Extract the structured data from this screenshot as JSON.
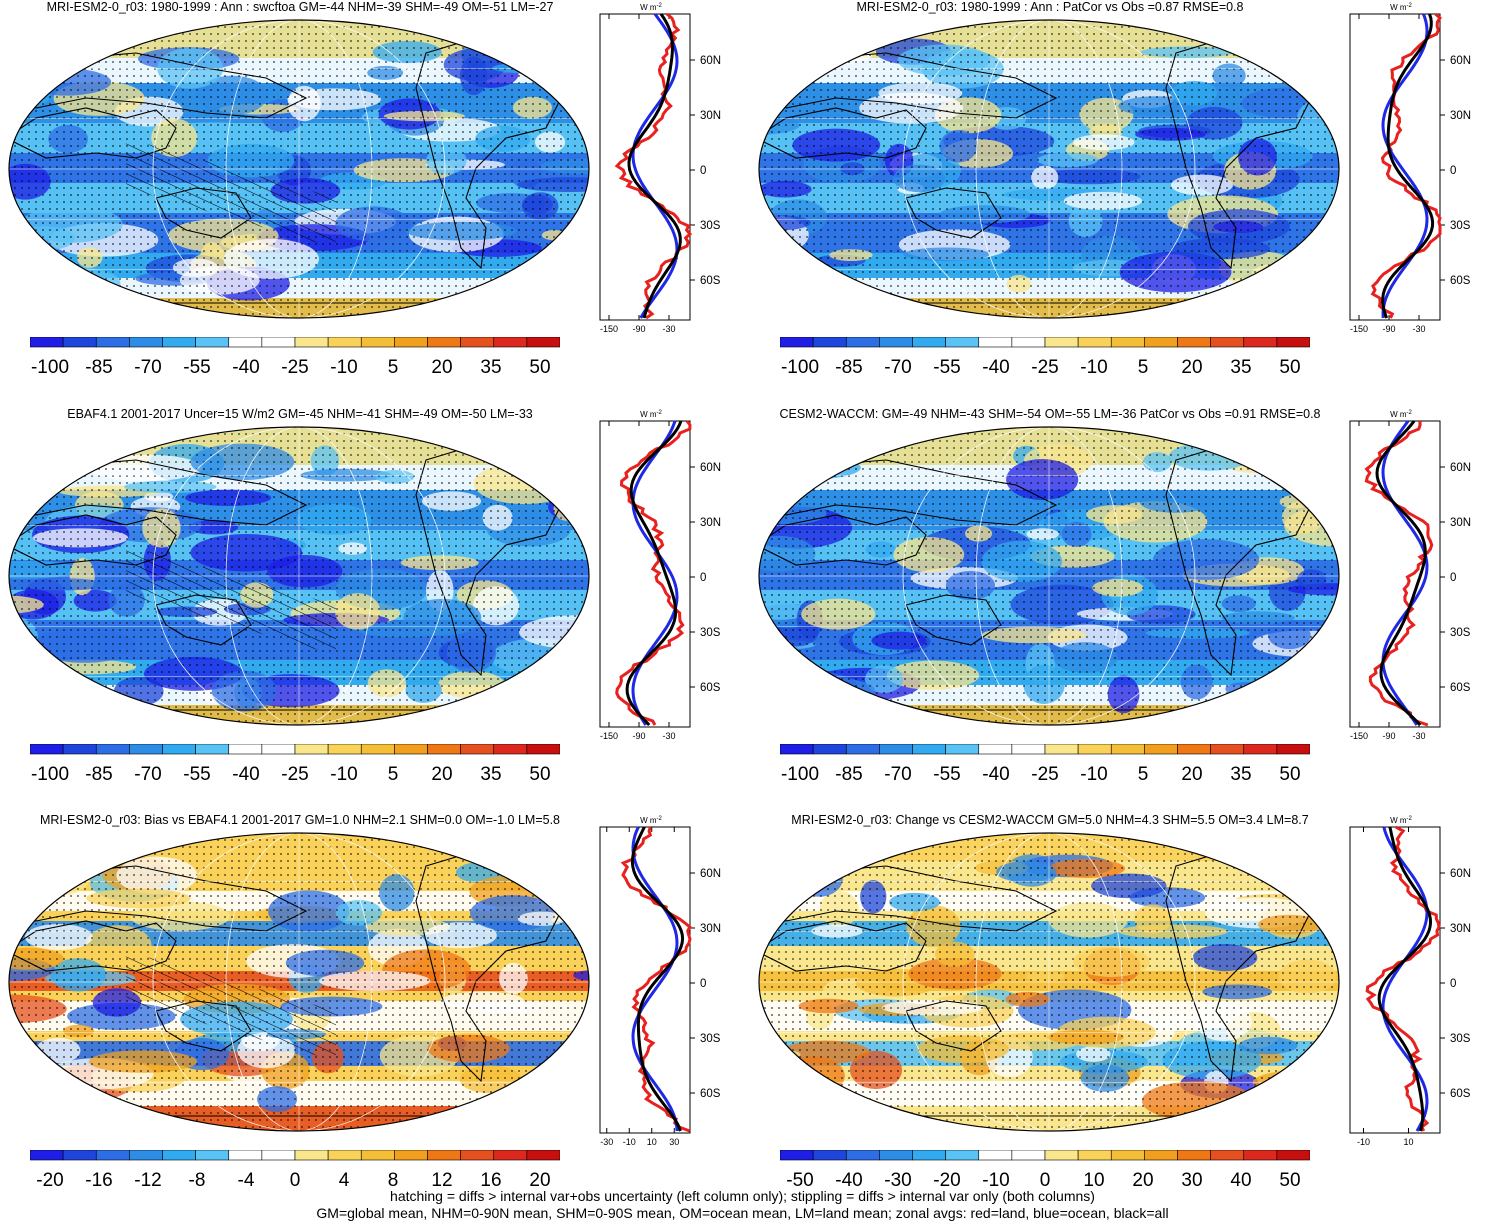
{
  "panels": [
    {
      "title": "MRI-ESM2-0_r03: 1980-1999 : Ann : swcftoa GM=-44 NHM=-39 SHM=-49 OM=-51 LM=-27",
      "colorbar": {
        "labels": [
          "-100",
          "-85",
          "-70",
          "-55",
          "-40",
          "-25",
          "-10",
          "5",
          "20",
          "35",
          "50"
        ],
        "palette": "full"
      },
      "zonal": {
        "xticks": [
          "-150",
          "-90",
          "-30"
        ],
        "units": "W m-2",
        "hatching": true
      }
    },
    {
      "title": "MRI-ESM2-0_r03: 1980-1999 : Ann : PatCor vs Obs =0.87 RMSE=0.8",
      "colorbar": {
        "labels": [
          "-100",
          "-85",
          "-70",
          "-55",
          "-40",
          "-25",
          "-10",
          "5",
          "20",
          "35",
          "50"
        ],
        "palette": "full"
      },
      "zonal": {
        "xticks": [
          "-150",
          "-90",
          "-30"
        ],
        "units": "W m-2",
        "hatching": false
      }
    },
    {
      "title": "EBAF4.1 2001-2017 Uncer=15 W/m2 GM=-45 NHM=-41 SHM=-49 OM=-50 LM=-33",
      "colorbar": {
        "labels": [
          "-100",
          "-85",
          "-70",
          "-55",
          "-40",
          "-25",
          "-10",
          "5",
          "20",
          "35",
          "50"
        ],
        "palette": "full"
      },
      "zonal": {
        "xticks": [
          "-150",
          "-90",
          "-30"
        ],
        "units": "W m-2",
        "hatching": true
      }
    },
    {
      "title": "CESM2-WACCM: GM=-49 NHM=-43 SHM=-54 OM=-55 LM=-36 PatCor vs Obs =0.91 RMSE=0.8",
      "colorbar": {
        "labels": [
          "-100",
          "-85",
          "-70",
          "-55",
          "-40",
          "-25",
          "-10",
          "5",
          "20",
          "35",
          "50"
        ],
        "palette": "full"
      },
      "zonal": {
        "xticks": [
          "-150",
          "-90",
          "-30"
        ],
        "units": "W m-2",
        "hatching": false
      }
    },
    {
      "title": "MRI-ESM2-0_r03: Bias vs EBAF4.1 2001-2017 GM=1.0 NHM=2.1 SHM=0.0 OM=-1.0 LM=5.8",
      "colorbar": {
        "labels": [
          "-20",
          "-16",
          "-12",
          "-8",
          "-4",
          "0",
          "4",
          "8",
          "12",
          "16",
          "20"
        ],
        "palette": "full"
      },
      "zonal": {
        "xticks": [
          "-30",
          "-10",
          "10",
          "30"
        ],
        "units": "W m-2",
        "hatching": true
      }
    },
    {
      "title": "MRI-ESM2-0_r03: Change vs CESM2-WACCM GM=5.0 NHM=4.3 SHM=5.5 OM=3.4 LM=8.7",
      "colorbar": {
        "labels": [
          "-50",
          "-40",
          "-30",
          "-20",
          "-10",
          "0",
          "10",
          "20",
          "30",
          "40",
          "50"
        ],
        "palette": "full"
      },
      "zonal": {
        "xticks": [
          "-10",
          "10"
        ],
        "units": "W m-2",
        "hatching": false
      }
    }
  ],
  "lat_labels": [
    "60N",
    "30N",
    "0",
    "30S",
    "60S"
  ],
  "zonal_units_label": "W m",
  "zonal_units_exp": "-2",
  "footer": {
    "line1": "hatching = diffs > internal var+obs uncertainty (left column only); stippling = diffs > internal var only (both columns)",
    "line2": "GM=global mean, NHM=0-90N mean, SHM=0-90S mean, OM=ocean mean, LM=land mean; zonal avgs: red=land, blue=ocean, black=all"
  },
  "colors": {
    "palette": [
      "#1e1ee6",
      "#1e46dc",
      "#2d6ee6",
      "#2d8ce6",
      "#32aaf0",
      "#5ac3f5",
      "#ffffff",
      "#ffffff",
      "#fae68c",
      "#fad25a",
      "#f5be37",
      "#f0a01e",
      "#f07814",
      "#e6501e",
      "#dc281e",
      "#c80f0f"
    ],
    "land": "#e8201e",
    "ocean": "#1e28e6",
    "all": "#000000"
  }
}
